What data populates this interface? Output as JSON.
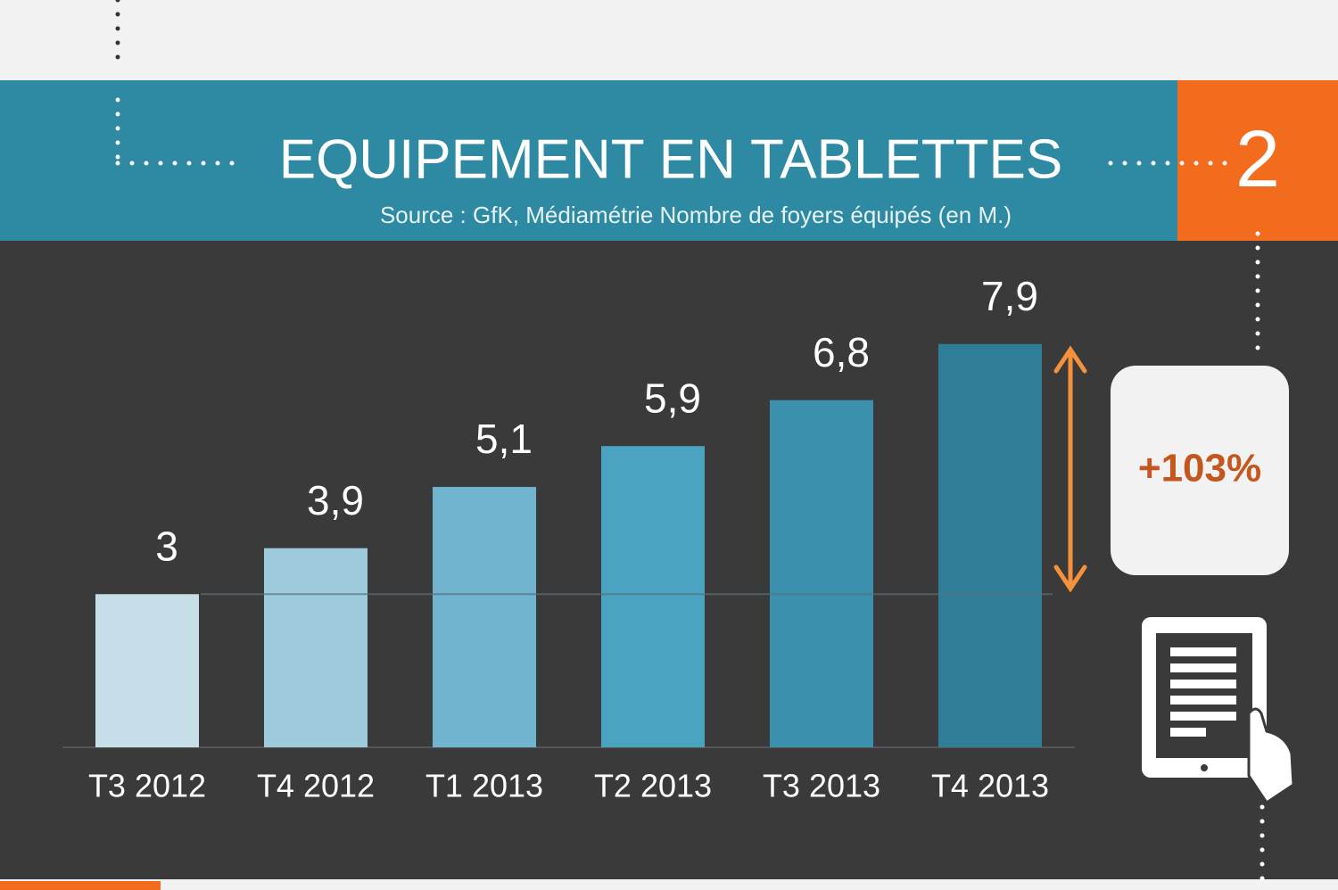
{
  "chart_data": {
    "type": "bar",
    "title": "EQUIPEMENT EN TABLETTES",
    "subtitle": "Source : GfK, Médiamétrie Nombre de foyers équipés (en M.)",
    "badge": "2",
    "annotation": "+103%",
    "categories": [
      "T3 2012",
      "T4 2012",
      "T1 2013",
      "T2 2013",
      "T3 2013",
      "T4 2013"
    ],
    "values": [
      3,
      3.9,
      5.1,
      5.9,
      6.8,
      7.9
    ],
    "value_labels": [
      "3",
      "3,9",
      "5,1",
      "5,9",
      "6,8",
      "7,9"
    ],
    "colors": [
      "#c6dee7",
      "#9ecbdc",
      "#70b4cf",
      "#4ba3c2",
      "#3b91ad",
      "#2f7d96"
    ],
    "ylim": [
      0,
      8
    ]
  }
}
